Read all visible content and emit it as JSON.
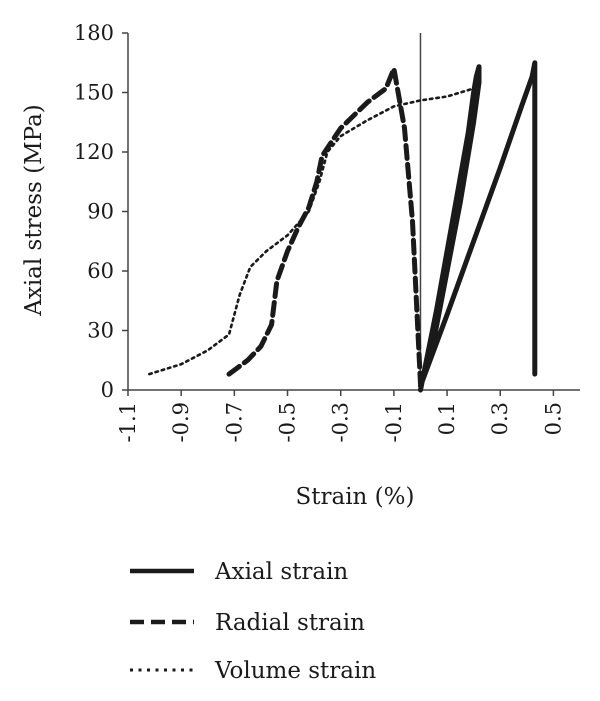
{
  "chart_data": {
    "type": "line",
    "title": "",
    "xlabel": "Strain (%)",
    "ylabel": "Axial stress (MPa)",
    "xlim": [
      -1.1,
      0.6
    ],
    "ylim": [
      0,
      180
    ],
    "x_ticks": [
      "-1.1",
      "-0.9",
      "-0.7",
      "-0.5",
      "-0.3",
      "-0.1",
      "0.1",
      "0.3",
      "0.5"
    ],
    "x_tick_values": [
      -1.1,
      -0.9,
      -0.7,
      -0.5,
      -0.3,
      -0.1,
      0.1,
      0.3,
      0.5
    ],
    "y_ticks": [
      "0",
      "30",
      "60",
      "90",
      "120",
      "150",
      "180"
    ],
    "y_tick_values": [
      0,
      30,
      60,
      90,
      120,
      150,
      180
    ],
    "grid": false,
    "legend_position": "bottom",
    "color": "#1a1a1a",
    "series": [
      {
        "name": "Axial strain",
        "style": "solid",
        "x": [
          0.0,
          0.06,
          0.12,
          0.18,
          0.2,
          0.21,
          0.22,
          0.22,
          0.2,
          0.15,
          0.1,
          0.05,
          0.0,
          0.1,
          0.2,
          0.3,
          0.38,
          0.42,
          0.43,
          0.43,
          0.43
        ],
        "y": [
          0,
          40,
          85,
          130,
          150,
          158,
          163,
          155,
          135,
          95,
          60,
          25,
          2,
          38,
          75,
          112,
          143,
          158,
          165,
          90,
          8
        ]
      },
      {
        "name": "Radial strain",
        "style": "dashed",
        "x": [
          -0.72,
          -0.65,
          -0.6,
          -0.56,
          -0.54,
          -0.5,
          -0.46,
          -0.42,
          -0.39,
          -0.37,
          -0.3,
          -0.2,
          -0.13,
          -0.1,
          -0.06,
          -0.03,
          0.0
        ],
        "y": [
          8,
          15,
          22,
          33,
          55,
          70,
          82,
          92,
          105,
          118,
          132,
          145,
          152,
          162,
          132,
          85,
          3
        ]
      },
      {
        "name": "Volume strain",
        "style": "dotted",
        "x": [
          -1.02,
          -0.9,
          -0.8,
          -0.72,
          -0.68,
          -0.64,
          -0.58,
          -0.5,
          -0.42,
          -0.38,
          -0.35,
          -0.3,
          -0.2,
          -0.1,
          0.0,
          0.1,
          0.2
        ],
        "y": [
          8,
          13,
          20,
          28,
          48,
          62,
          70,
          78,
          90,
          105,
          120,
          128,
          136,
          143,
          146,
          148,
          152
        ]
      }
    ]
  }
}
